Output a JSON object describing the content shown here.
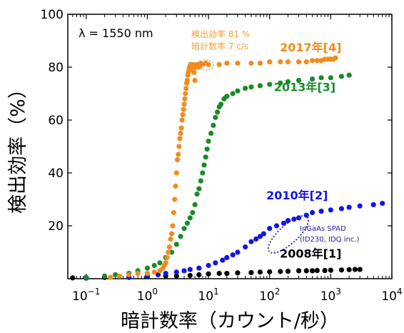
{
  "chart_data": {
    "type": "scatter",
    "xlabel": "暗計数率（カウント/秒）",
    "ylabel": "検出効率（%）",
    "xscale": "log",
    "xlim": [
      0.05,
      10000
    ],
    "ylim": [
      0,
      100
    ],
    "x_ticks": [
      {
        "value": 0.1,
        "base": "10",
        "exp": "−1"
      },
      {
        "value": 1,
        "base": "10",
        "exp": "0"
      },
      {
        "value": 10,
        "base": "10",
        "exp": "1"
      },
      {
        "value": 100,
        "base": "10",
        "exp": "2"
      },
      {
        "value": 1000,
        "base": "10",
        "exp": "3"
      },
      {
        "value": 10000,
        "base": "10",
        "exp": "4"
      }
    ],
    "y_ticks": [
      {
        "value": 20,
        "label": "20"
      },
      {
        "value": 40,
        "label": "40"
      },
      {
        "value": 60,
        "label": "60"
      },
      {
        "value": 80,
        "label": "80"
      },
      {
        "value": 100,
        "label": "100"
      }
    ],
    "grid": false,
    "wavelength_label": "λ = 1550 nm",
    "annotations": {
      "highlight_line1": "検出効率 81 %",
      "highlight_line2": "暗計数率 7 c/s",
      "highlight_color": "#f0a040",
      "spad_line1": "InGaAs SPAD",
      "spad_line2": "(ID230, IDQ inc.)",
      "spad_color": "#2020a0"
    },
    "series": [
      {
        "name": "2017年[4]",
        "color": "#f08c1e",
        "x": [
          0.25,
          0.35,
          0.5,
          0.7,
          1.0,
          1.3,
          1.6,
          1.8,
          1.9,
          2.0,
          2.1,
          2.2,
          2.3,
          2.4,
          2.5,
          2.6,
          2.7,
          2.8,
          2.9,
          3.0,
          3.1,
          3.2,
          3.3,
          3.4,
          3.5,
          3.6,
          3.7,
          3.8,
          3.9,
          4.0,
          4.1,
          4.2,
          4.3,
          4.4,
          4.5,
          4.6,
          4.7,
          4.8,
          4.9,
          5.0,
          5.1,
          5.2,
          5.4,
          5.6,
          5.8,
          6.0,
          6.2,
          6.5,
          6.8,
          7.0,
          7.5,
          8.0,
          9.0,
          10,
          15,
          20,
          30,
          50,
          70,
          100,
          150,
          200,
          300,
          400,
          500,
          600,
          700,
          800,
          900,
          1000,
          1100,
          1200
        ],
        "y": [
          0.5,
          1,
          1.5,
          2,
          2,
          2.5,
          3,
          4,
          5,
          6,
          8,
          10,
          12,
          15,
          17,
          20,
          25,
          30,
          35,
          40,
          45,
          47,
          50,
          53,
          55,
          57,
          60,
          62,
          64,
          66,
          68,
          70,
          72,
          74,
          75,
          77,
          78,
          79,
          80,
          80.5,
          81,
          80,
          79,
          81,
          78,
          75,
          80,
          81,
          81,
          80,
          81.5,
          81,
          81.5,
          81,
          81,
          81.5,
          81.5,
          81.5,
          81.5,
          82,
          82,
          82,
          82,
          82,
          82.5,
          82.5,
          82.5,
          83,
          83,
          83,
          83,
          83.5
        ],
        "label_pos": {
          "x": 1500,
          "y": 86
        }
      },
      {
        "name": "2013年[3]",
        "color": "#1a8a2a",
        "x": [
          0.1,
          0.2,
          0.3,
          0.5,
          0.7,
          1.0,
          1.3,
          1.6,
          2.0,
          2.5,
          3.0,
          3.5,
          4.0,
          4.5,
          5.0,
          5.5,
          6.0,
          6.5,
          7.0,
          7.5,
          8.0,
          8.5,
          9.0,
          9.5,
          10,
          11,
          12,
          13,
          14,
          15,
          16,
          18,
          20,
          25,
          30,
          40,
          50,
          70,
          100,
          150,
          200,
          300,
          500,
          700,
          1000,
          1500,
          2000
        ],
        "y": [
          0.5,
          1,
          1.5,
          2,
          3,
          4,
          5,
          6,
          8,
          10,
          13,
          16,
          19,
          21,
          23,
          25,
          28,
          32,
          34,
          37,
          40,
          43,
          46,
          49,
          52,
          55,
          58,
          61,
          63,
          65,
          66,
          68,
          69,
          70,
          71,
          72,
          72.5,
          73,
          73.5,
          74,
          74.5,
          75,
          75.5,
          76,
          76,
          76.5,
          77
        ],
        "label_pos": {
          "x": 1200,
          "y": 71
        }
      },
      {
        "name": "2010年[2]",
        "color": "#1414e6",
        "x": [
          0.1,
          0.5,
          1.0,
          1.5,
          2.0,
          3.0,
          4.0,
          5.0,
          7.0,
          10,
          13,
          17,
          20,
          25,
          30,
          40,
          50,
          60,
          70,
          80,
          100,
          130,
          170,
          200,
          250,
          300,
          400,
          500,
          700,
          1000,
          1500,
          2000,
          3000,
          5000,
          7000
        ],
        "y": [
          0.2,
          0.5,
          1,
          1.5,
          2,
          2.5,
          3,
          3.5,
          4,
          5,
          6,
          7,
          8,
          9,
          10,
          12,
          14,
          15,
          16,
          17,
          19,
          20,
          21,
          22,
          22.5,
          23,
          24,
          25,
          25.5,
          26,
          26.5,
          27,
          27.5,
          28,
          28.5
        ],
        "label_pos": {
          "x": 900,
          "y": 30
        }
      },
      {
        "name": "2008年[1]",
        "color": "#000000",
        "x": [
          0.06,
          0.1,
          0.2,
          0.5,
          1.0,
          2.0,
          3.0,
          5.0,
          7.0,
          10,
          15,
          20,
          30,
          50,
          70,
          100,
          150,
          200,
          300,
          400,
          500,
          600,
          800,
          1000,
          1500,
          2000,
          2500,
          3000
        ],
        "y": [
          0.3,
          0.3,
          0.5,
          0.5,
          0.8,
          1,
          1,
          1.2,
          1.5,
          1.8,
          2,
          2,
          2.2,
          2.3,
          2.5,
          2.6,
          2.7,
          2.8,
          3,
          3,
          3,
          3.1,
          3.1,
          3.2,
          3.3,
          3.4,
          3.5,
          3.5
        ],
        "label_pos": {
          "x": 1500,
          "y": 8
        }
      }
    ]
  }
}
